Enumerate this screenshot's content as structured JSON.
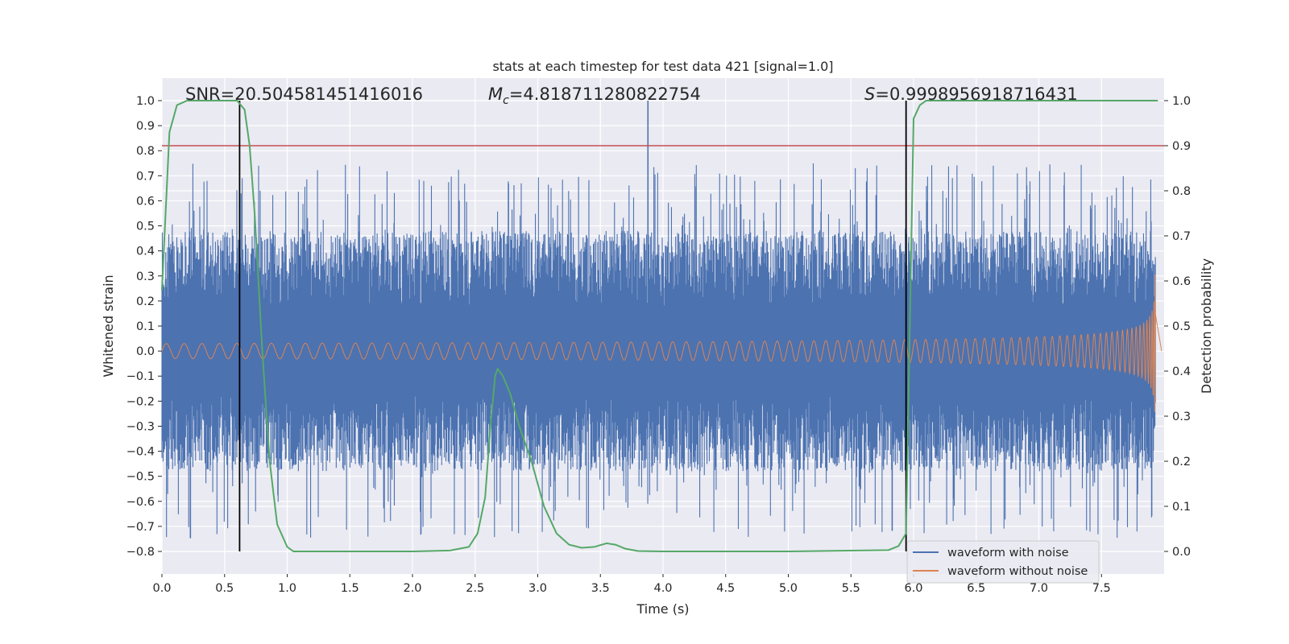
{
  "chart_data": {
    "type": "line",
    "title": "stats at each timestep for test data 421 [signal=1.0]",
    "xlabel": "Time (s)",
    "ylabel": "Whitened strain",
    "y2label": "Detection probability",
    "xlim": [
      0.0,
      8.0
    ],
    "ylim": [
      -0.89,
      1.09
    ],
    "y2lim": [
      -0.05,
      1.05
    ],
    "xticks": [
      "0.0",
      "0.5",
      "1.0",
      "1.5",
      "2.0",
      "2.5",
      "3.0",
      "3.5",
      "4.0",
      "4.5",
      "5.0",
      "5.5",
      "6.0",
      "6.5",
      "7.0",
      "7.5"
    ],
    "yticks": [
      "1.0",
      "0.9",
      "0.8",
      "0.7",
      "0.6",
      "0.5",
      "0.4",
      "0.3",
      "0.2",
      "0.1",
      "0.0",
      "−0.1",
      "−0.2",
      "−0.3",
      "−0.4",
      "−0.5",
      "−0.6",
      "−0.7",
      "−0.8"
    ],
    "y2ticks": [
      "1.0",
      "0.9",
      "0.8",
      "0.7",
      "0.6",
      "0.5",
      "0.4",
      "0.3",
      "0.2",
      "0.1",
      "0.0"
    ],
    "grid": true,
    "legend_position": "lower-right",
    "annotations": {
      "snr": "SNR=20.504581451416016",
      "mc_symbol": "M",
      "mc_sub": "c",
      "mc_value": "=4.818711280822754",
      "s_symbol": "S",
      "s_value": "=0.9998956918716431"
    },
    "threshold_y2": 0.9,
    "vlines_x": [
      0.62,
      5.94
    ],
    "series": [
      {
        "name": "waveform with noise",
        "color": "#4c72b0",
        "envelope_typical": 0.42,
        "peak": 1.0,
        "peak_x": 3.88
      },
      {
        "name": "waveform without noise",
        "color": "#dd8452",
        "start_amp": 0.03,
        "end_amp": 0.45,
        "end_x": 7.93
      },
      {
        "name": "",
        "color": "#55a868",
        "axis": "right",
        "x": [
          0.0,
          0.06,
          0.12,
          0.2,
          0.3,
          0.45,
          0.6,
          0.66,
          0.7,
          0.74,
          0.8,
          0.86,
          0.92,
          1.0,
          1.05,
          1.2,
          1.5,
          2.0,
          2.3,
          2.45,
          2.52,
          2.58,
          2.62,
          2.66,
          2.68,
          2.72,
          2.78,
          2.85,
          2.95,
          3.05,
          3.15,
          3.25,
          3.35,
          3.45,
          3.55,
          3.62,
          3.7,
          3.8,
          4.0,
          5.0,
          5.8,
          5.88,
          5.94,
          6.0,
          6.05,
          6.1,
          6.5,
          7.0,
          7.5,
          7.95
        ],
        "y": [
          0.58,
          0.93,
          0.99,
          1.0,
          1.0,
          1.0,
          1.0,
          0.98,
          0.9,
          0.75,
          0.45,
          0.2,
          0.06,
          0.01,
          0.0,
          0.0,
          0.0,
          0.0,
          0.002,
          0.01,
          0.04,
          0.12,
          0.27,
          0.39,
          0.405,
          0.39,
          0.35,
          0.28,
          0.2,
          0.1,
          0.04,
          0.015,
          0.008,
          0.01,
          0.018,
          0.015,
          0.006,
          0.001,
          0.0,
          0.0,
          0.003,
          0.012,
          0.04,
          0.96,
          0.99,
          1.0,
          1.0,
          1.0,
          1.0,
          1.0
        ]
      }
    ]
  },
  "legend": {
    "entries": [
      {
        "label": "waveform with noise",
        "color": "#4c72b0"
      },
      {
        "label": "waveform without noise",
        "color": "#dd8452"
      }
    ]
  }
}
